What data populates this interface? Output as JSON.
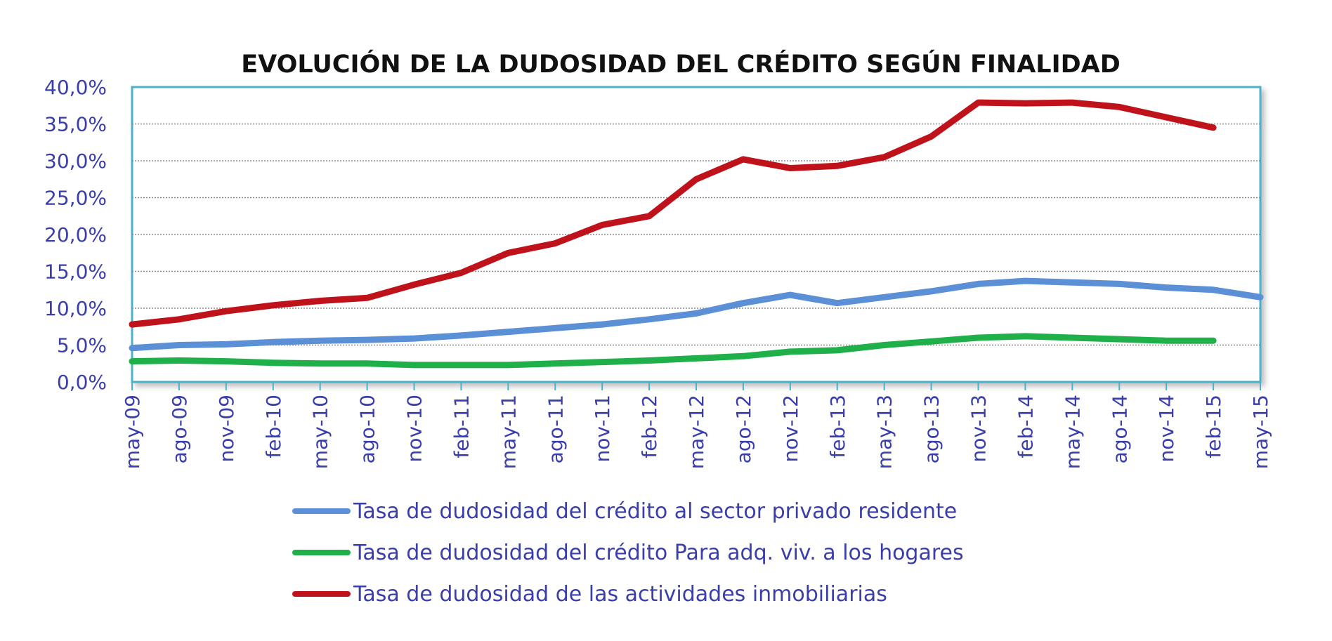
{
  "chart_data": {
    "type": "line",
    "title": "EVOLUCIÓN DE LA DUDOSIDAD DEL CRÉDITO SEGÚN FINALIDAD",
    "xlabel": "",
    "ylabel": "",
    "ylim": [
      0,
      40
    ],
    "grid": true,
    "legend_position": "bottom",
    "y_ticks": [
      "0,0%",
      "5,0%",
      "10,0%",
      "15,0%",
      "20,0%",
      "25,0%",
      "30,0%",
      "35,0%",
      "40,0%"
    ],
    "x_tick_labels": [
      "may-09",
      "ago-09",
      "nov-09",
      "feb-10",
      "may-10",
      "ago-10",
      "nov-10",
      "feb-11",
      "may-11",
      "ago-11",
      "nov-11",
      "feb-12",
      "may-12",
      "ago-12",
      "nov-12",
      "feb-13",
      "may-13",
      "ago-13",
      "nov-13",
      "feb-14",
      "may-14",
      "ago-14",
      "nov-14",
      "feb-15",
      "may-15"
    ],
    "series": [
      {
        "name": "Tasa de dudosidad del crédito al sector privado residente",
        "color": "#5b8fd6",
        "values": [
          4.6,
          5.0,
          5.1,
          5.4,
          5.6,
          5.7,
          5.9,
          6.3,
          6.8,
          7.3,
          7.8,
          8.5,
          9.3,
          10.7,
          11.8,
          10.7,
          11.5,
          12.3,
          13.3,
          13.7,
          13.5,
          13.3,
          12.8,
          12.5,
          11.5
        ]
      },
      {
        "name": "Tasa de dudosidad del crédito Para adq. viv. a los hogares",
        "color": "#1fb04a",
        "values": [
          2.8,
          2.9,
          2.8,
          2.6,
          2.5,
          2.5,
          2.3,
          2.3,
          2.3,
          2.5,
          2.7,
          2.9,
          3.2,
          3.5,
          4.1,
          4.3,
          5.0,
          5.5,
          6.0,
          6.2,
          6.0,
          5.8,
          5.6,
          5.6,
          null
        ]
      },
      {
        "name": "Tasa de dudosidad de las actividades inmobiliarias",
        "color": "#c0121b",
        "values": [
          7.8,
          8.5,
          9.6,
          10.4,
          11.0,
          11.4,
          13.2,
          14.8,
          17.5,
          18.8,
          21.3,
          22.5,
          27.5,
          30.2,
          29.0,
          29.3,
          30.5,
          33.3,
          37.9,
          37.8,
          37.9,
          37.3,
          35.9,
          34.5,
          null
        ]
      }
    ]
  }
}
